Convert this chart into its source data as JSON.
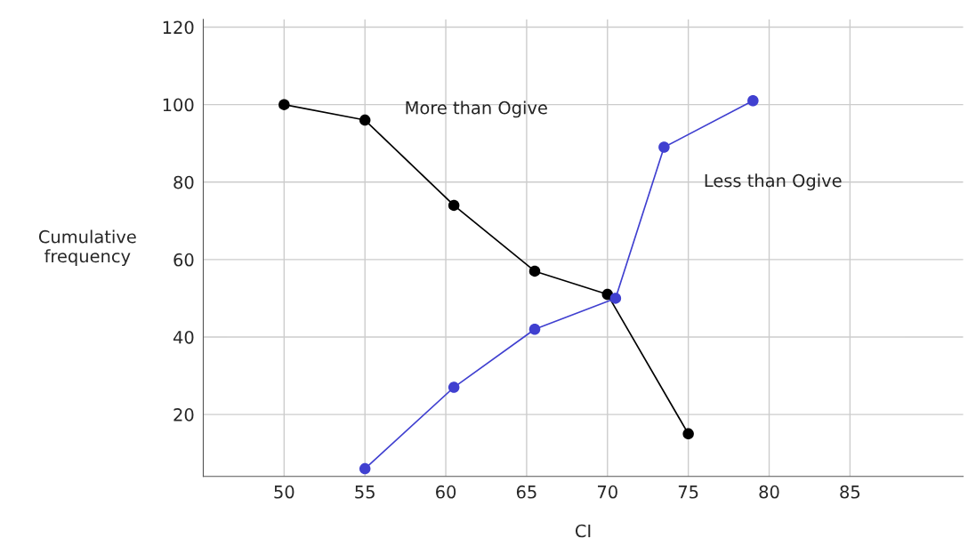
{
  "chart_data": {
    "type": "line",
    "xlabel": "CI",
    "ylabel": "Cumulative\nfrequency",
    "xlim": [
      45,
      92
    ],
    "xticks": [
      50,
      55,
      60,
      65,
      70,
      75,
      80,
      85
    ],
    "ylim": [
      4,
      122
    ],
    "yticks": [
      20,
      40,
      60,
      80,
      100,
      120
    ],
    "grid": true,
    "marker": "circle",
    "line_style": "solid",
    "legend": false,
    "series": [
      {
        "name": "More than Ogive",
        "color": "#000000",
        "x": [
          50,
          55,
          60.5,
          65.5,
          70,
          75
        ],
        "values": [
          100,
          96,
          74,
          57,
          51,
          15
        ]
      },
      {
        "name": "Less than Ogive",
        "color": "#4040d0",
        "x": [
          55,
          60.5,
          65.5,
          70.5,
          73.5,
          79
        ],
        "values": [
          6,
          27,
          42,
          50,
          89,
          101
        ]
      }
    ]
  }
}
